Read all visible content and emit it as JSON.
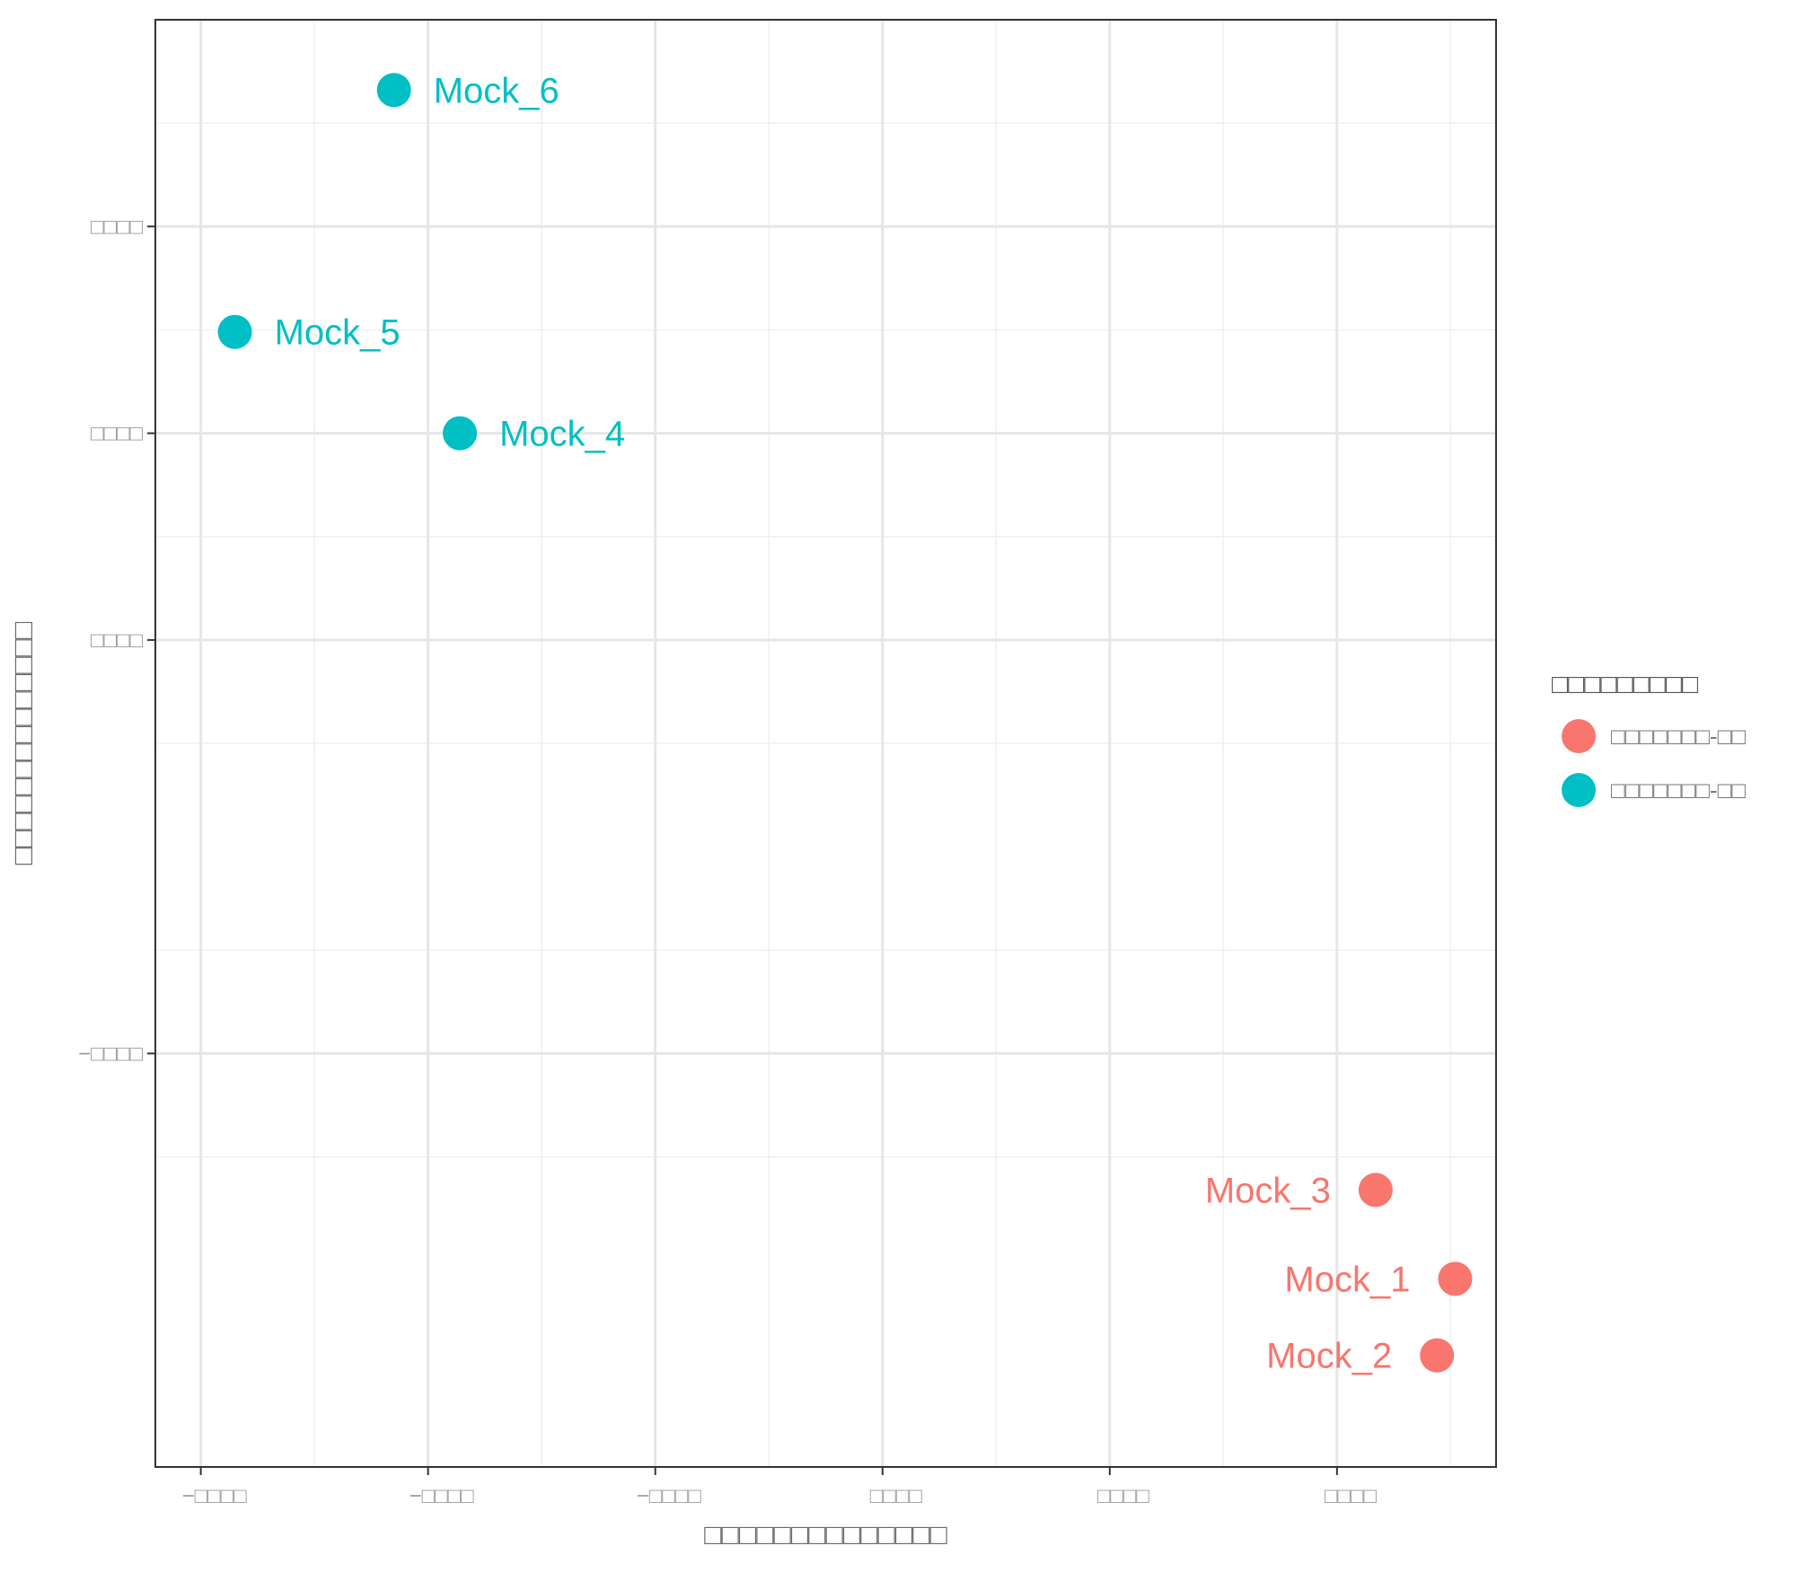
{
  "chart_data": {
    "type": "scatter",
    "title": "",
    "xlabel": "□□□□□□□□□□□□□□",
    "ylabel": "□□□□□□□□□□□□□□",
    "xlim": [
      -32,
      27
    ],
    "ylim": [
      -40,
      30
    ],
    "x_ticks": [
      -30,
      -20,
      -10,
      0,
      10,
      20
    ],
    "x_tick_labels": [
      "−□□□□",
      "−□□□□",
      "−□□□□",
      "□□□□",
      "□□□□",
      "□□□□"
    ],
    "y_ticks": [
      -20,
      0,
      10,
      20
    ],
    "y_tick_labels": [
      "−□□□□",
      "□□□□",
      "□□□□",
      "□□□□"
    ],
    "grid": true,
    "legend_position": "right",
    "legend_title": "□□□□□□□□□",
    "colors": {
      "group1": "#f8766d",
      "group2": "#00bfc4"
    },
    "series": [
      {
        "name": "□□□□□□□-□□",
        "color": "#f8766d",
        "label_side": "left",
        "points": [
          {
            "label": "Mock_1",
            "x": 25.2,
            "y": -30.9
          },
          {
            "label": "Mock_2",
            "x": 24.4,
            "y": -34.6
          },
          {
            "label": "Mock_3",
            "x": 21.7,
            "y": -26.6
          }
        ]
      },
      {
        "name": "□□□□□□□-□□",
        "color": "#00bfc4",
        "label_side": "right",
        "points": [
          {
            "label": "Mock_4",
            "x": -18.6,
            "y": 10.0
          },
          {
            "label": "Mock_5",
            "x": -28.5,
            "y": 14.9
          },
          {
            "label": "Mock_6",
            "x": -21.5,
            "y": 26.6
          }
        ]
      }
    ]
  }
}
